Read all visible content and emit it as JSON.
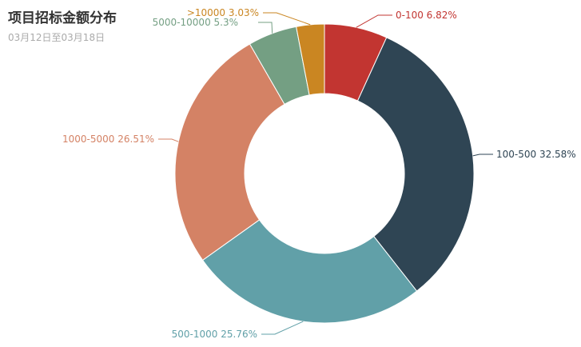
{
  "chart_data": {
    "type": "pie",
    "title": "项目招标金额分布",
    "subtitle": "03月12日至03月18日",
    "donut": true,
    "slices": [
      {
        "name": "0-100",
        "value": 6.82,
        "label": "0-100 6.82%",
        "color": "#c23531"
      },
      {
        "name": "100-500",
        "value": 32.58,
        "label": "100-500 32.58%",
        "color": "#2f4554"
      },
      {
        "name": "500-1000",
        "value": 25.76,
        "label": "500-1000 25.76%",
        "color": "#61a0a8"
      },
      {
        "name": "1000-5000",
        "value": 26.51,
        "label": "1000-5000 26.51%",
        "color": "#d48265"
      },
      {
        "name": "5000-10000",
        "value": 5.3,
        "label": "5000-10000 5.3%",
        "color": "#749f83"
      },
      {
        "name": ">10000",
        "value": 3.03,
        "label": ">10000 3.03%",
        "color": "#ca8622"
      }
    ]
  }
}
